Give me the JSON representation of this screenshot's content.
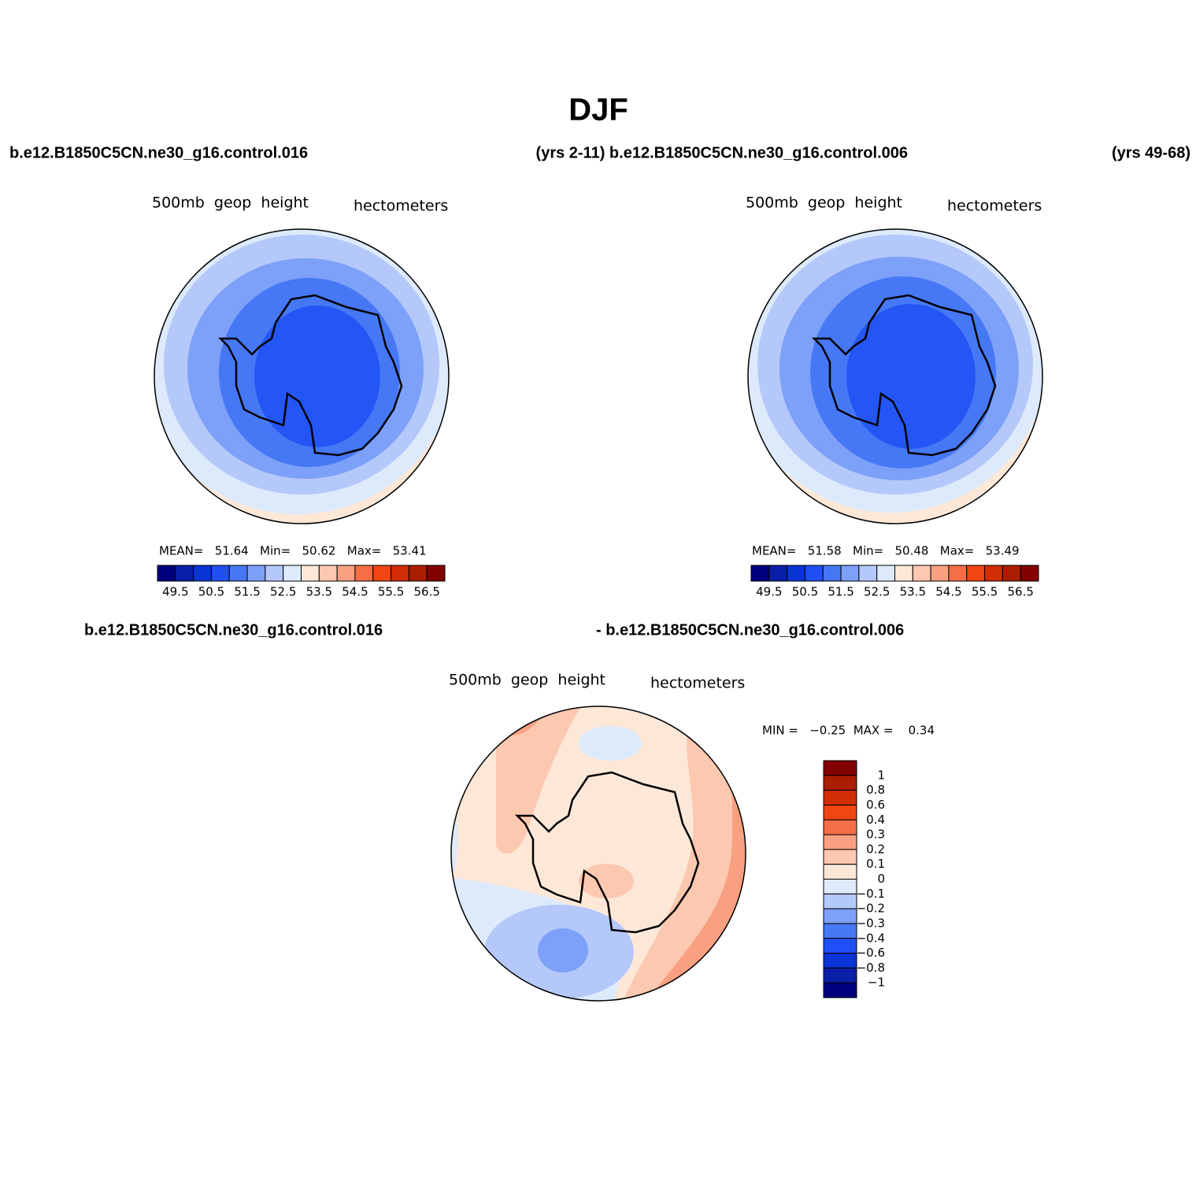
{
  "title": "DJF",
  "header": {
    "left": "b.e12.B1850C5CN.ne30_g16.control.016",
    "middle": "(yrs 2-11) b.e12.B1850C5CN.ne30_g16.control.006",
    "right": "(yrs 49-68)"
  },
  "panels": [
    {
      "variable": "500mb  geop  height",
      "units": "hectometers",
      "stats": "MEAN=   51.64   Min=   50.62   Max=   53.41"
    },
    {
      "variable": "500mb  geop  height",
      "units": "hectometers",
      "stats": "MEAN=   51.58   Min=   50.48   Max=   53.49"
    }
  ],
  "colorbar": {
    "colors": [
      "#00007f",
      "#0a1fa8",
      "#0a34d6",
      "#1e50f5",
      "#4678f5",
      "#7da0f8",
      "#b4c8fa",
      "#dceafc",
      "#fde8d8",
      "#fcc8b0",
      "#f8a080",
      "#f56e46",
      "#f04614",
      "#d22d05",
      "#aa1e00",
      "#820000"
    ],
    "labels": [
      "49.5",
      "50.5",
      "51.5",
      "52.5",
      "53.5",
      "54.5",
      "55.5",
      "56.5"
    ]
  },
  "difference": {
    "label_left": "b.e12.B1850C5CN.ne30_g16.control.016",
    "label_right": "- b.e12.B1850C5CN.ne30_g16.control.006",
    "variable": "500mb  geop  height",
    "units": "hectometers",
    "stats": "MIN =   −0.25  MAX =    0.34",
    "colorbar": {
      "colors": [
        "#820000",
        "#aa1e00",
        "#d22d05",
        "#f04614",
        "#f56e46",
        "#f8a080",
        "#fcc8b0",
        "#fde8d8",
        "#dceafc",
        "#b4c8fa",
        "#7da0f8",
        "#4678f5",
        "#1e50f5",
        "#0a34d6",
        "#0a1fa8",
        "#00007f"
      ],
      "labels": [
        "1",
        "0.8",
        "0.6",
        "0.4",
        "0.3",
        "0.2",
        "0.1",
        "0",
        "−0.1",
        "−0.2",
        "−0.3",
        "−0.4",
        "−0.6",
        "−0.8",
        "−1"
      ]
    }
  }
}
